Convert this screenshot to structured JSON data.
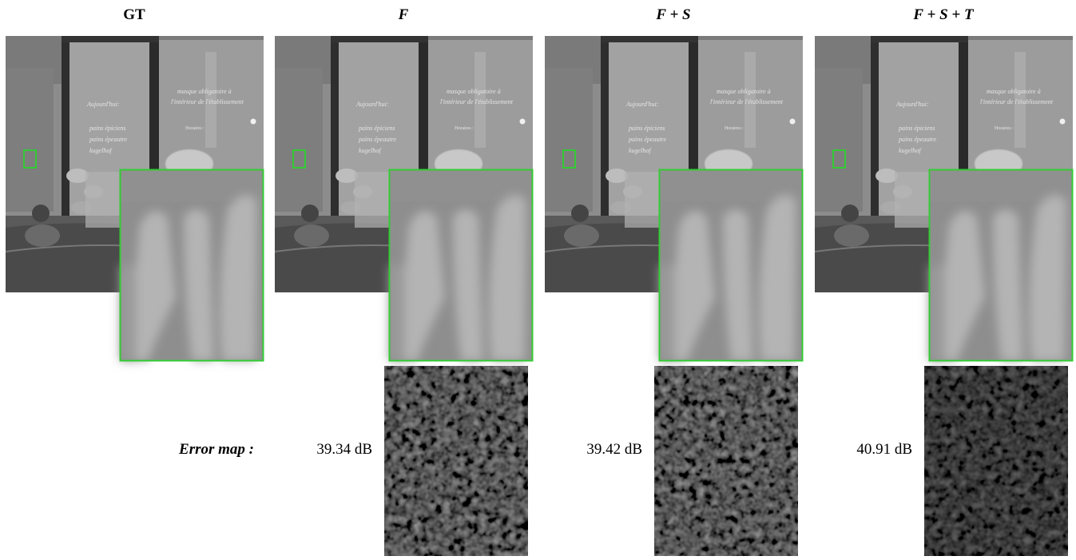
{
  "figure": {
    "columns": [
      {
        "title": "GT"
      },
      {
        "title": "F",
        "psnr": "39.34 dB"
      },
      {
        "title": "F + S",
        "psnr": "39.42 dB"
      },
      {
        "title": "F + S + T",
        "psnr": "40.91 dB"
      }
    ],
    "error_map_label": "Error map :"
  }
}
